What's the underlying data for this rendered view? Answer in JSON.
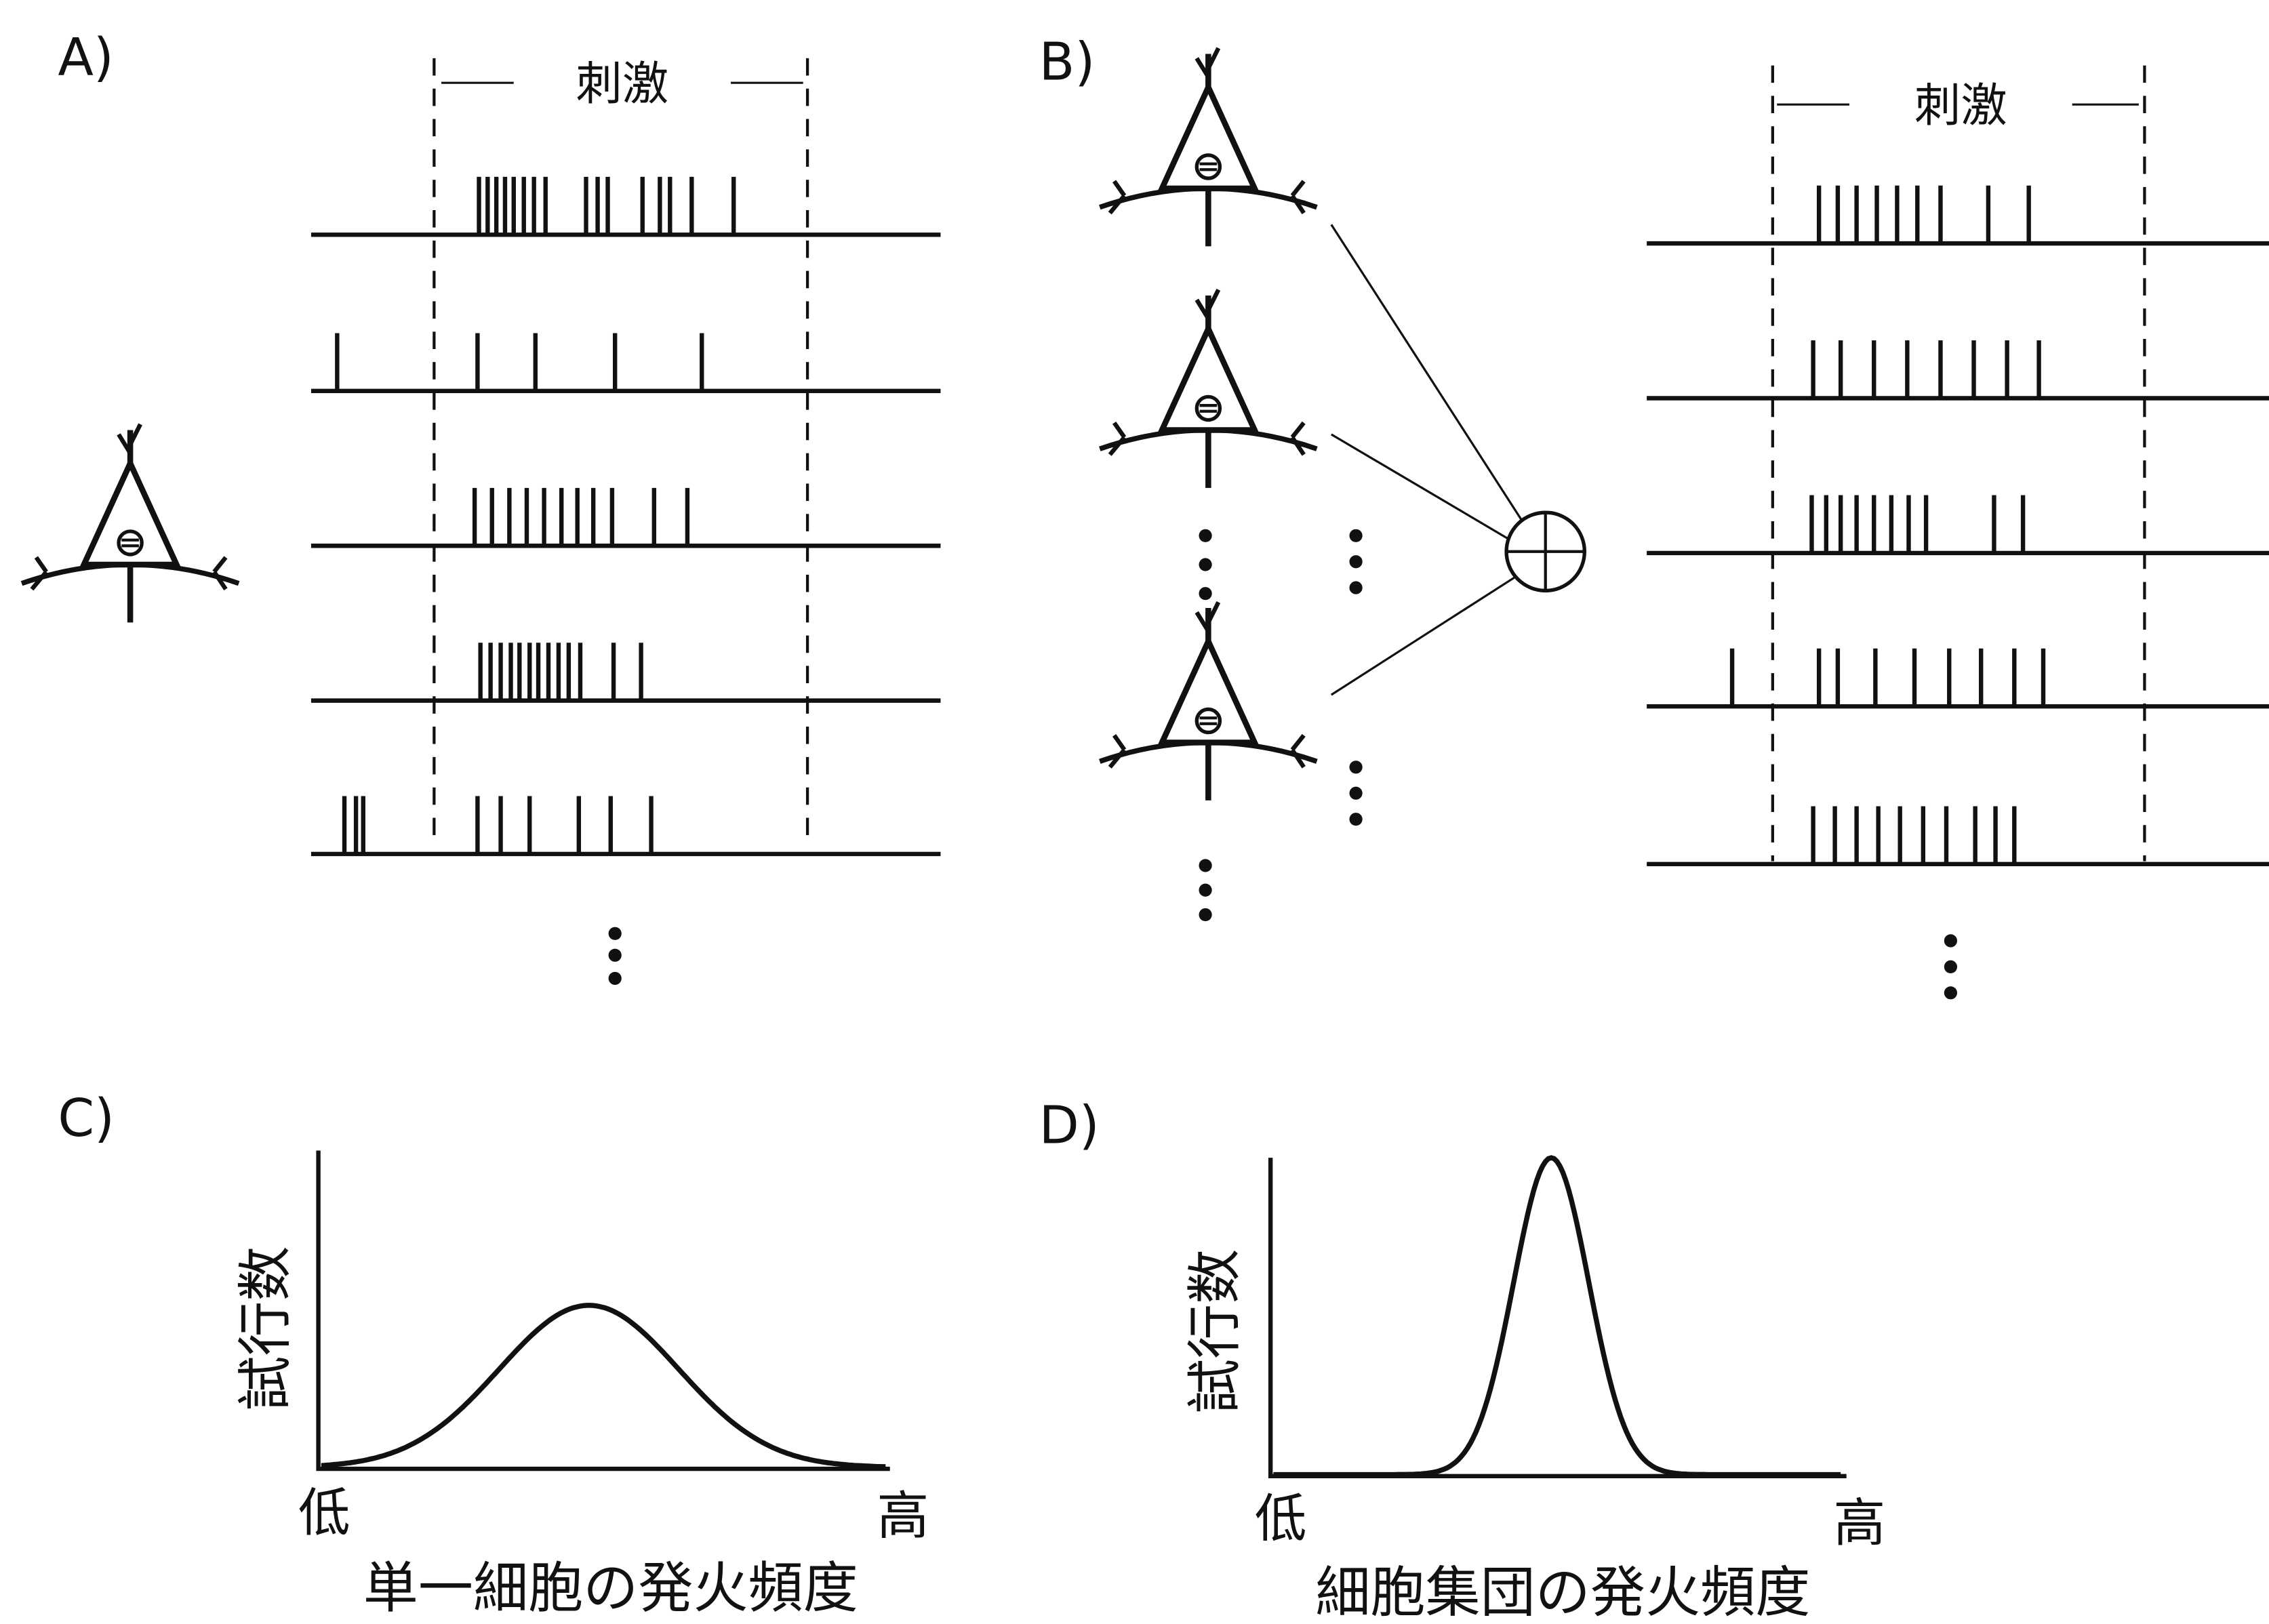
{
  "panels": [
    {
      "label": "A)",
      "stimulus": "刺激"
    },
    {
      "label": "B)",
      "stimulus": "刺激"
    },
    {
      "label": "C)",
      "y_axis": "試行数",
      "x_low": "低",
      "x_high": "高",
      "x_axis": "単一細胞の発火頻度"
    },
    {
      "label": "D)",
      "y_axis": "試行数",
      "x_low": "低",
      "x_high": "高",
      "x_axis": "細胞集団の発火頻度"
    }
  ]
}
